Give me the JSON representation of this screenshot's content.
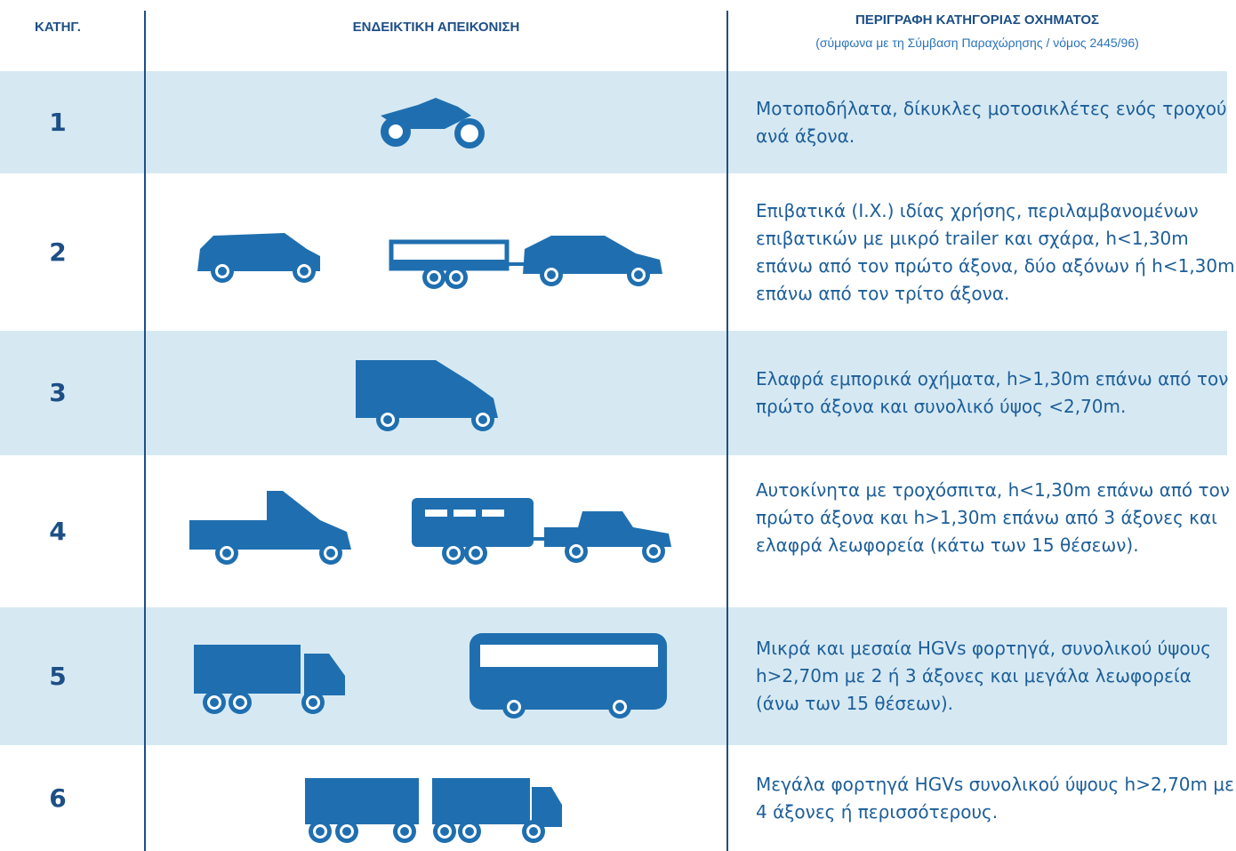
{
  "header": {
    "category": "ΚΑΤΗΓ.",
    "illustration": "ΕΝΔΕΙΚΤΙΚΗ ΑΠΕΙΚΟΝΙΣΗ",
    "description": "ΠΕΡΙΓΡΑΦΗ ΚΑΤΗΓΟΡΙΑΣ ΟΧΗΜΑΤΟΣ",
    "note": "(σύμφωνα με τη Σύμβαση Παραχώρησης / νόμος 2445/96)"
  },
  "rows": [
    {
      "category": "1",
      "description": "Μοτοποδήλατα, δίκυκλες μοτοσικλέτες ενός τροχού ανά άξονα."
    },
    {
      "category": "2",
      "description": "Επιβατικά (Ι.Χ.) ιδίας χρήσης, περιλαμβανομένων επιβατικών με μικρό trailer και σχάρα, h<1,30m επάνω από τον πρώτο άξονα, δύο αξόνων ή h<1,30m επάνω από τον τρίτο άξονα."
    },
    {
      "category": "3",
      "description": "Ελαφρά εμπορικά οχήματα, h>1,30m επάνω από τον πρώτο άξονα και συνολικό ύψος <2,70m."
    },
    {
      "category": "4",
      "description": "Αυτοκίνητα με τροχόσπιτα, h<1,30m επάνω από τον πρώτο άξονα και h>1,30m επάνω από 3 άξονες και ελαφρά λεωφορεία  (κάτω των 15 θέσεων)."
    },
    {
      "category": "5",
      "description": "Μικρά και μεσαία HGVs φορτηγά, συνολικού ύψους h>2,70m με 2 ή 3 άξονες και μεγάλα λεωφορεία (άνω των 15 θέσεων)."
    },
    {
      "category": "6",
      "description": "Μεγάλα φορτηγά HGVs συνολικού ύψους h>2,70m με 4 άξονες ή περισσότερους."
    }
  ]
}
